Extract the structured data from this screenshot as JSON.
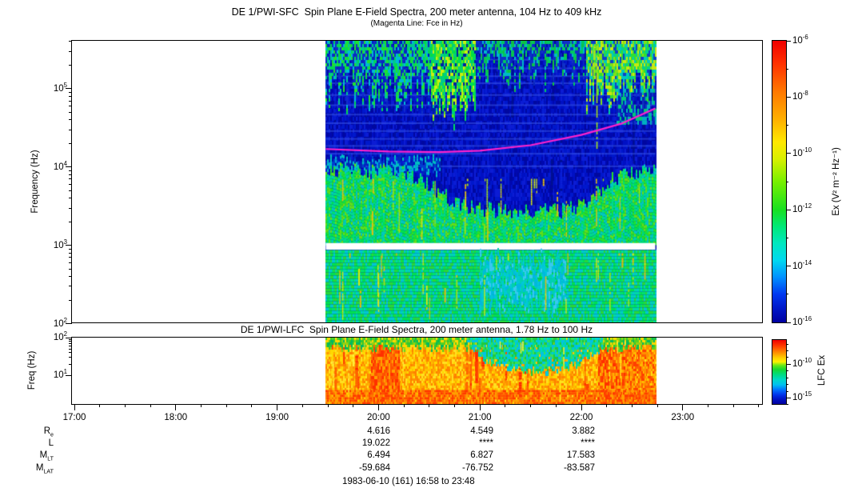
{
  "time_axis": {
    "labels": [
      "17:00",
      "18:00",
      "19:00",
      "20:00",
      "21:00",
      "22:00",
      "23:00"
    ],
    "hours": [
      17,
      18,
      19,
      20,
      21,
      22,
      23
    ],
    "minor_step_minutes": 15,
    "full_range": "16:58 to 23:48"
  },
  "annotations": {
    "rows": [
      {
        "label": {
          "base": "R",
          "sub": "e"
        },
        "values": [
          "4.616",
          "4.549",
          "3.882"
        ]
      },
      {
        "label": {
          "base": "L",
          "sub": ""
        },
        "values": [
          "19.022",
          "****",
          "****"
        ]
      },
      {
        "label": {
          "base": "M",
          "sub": "LT"
        },
        "values": [
          "6.494",
          "6.827",
          "17.583"
        ]
      },
      {
        "label": {
          "base": "M",
          "sub": "LAT"
        },
        "values": [
          "-59.684",
          "-76.752",
          "-83.587"
        ]
      }
    ],
    "value_column_hours": [
      20,
      21,
      22
    ],
    "footer": "1983-06-10 (161) 16:58 to 23:48"
  },
  "chart_data": [
    {
      "type": "heatmap",
      "id": "sfc",
      "title": "DE 1/PWI-SFC  Spin Plane E-Field Spectra, 200 meter antenna, 104 Hz to 409 kHz",
      "subtitle": "(Magenta Line: Fce in Hz)",
      "ylabel": "Frequency (Hz)",
      "y_scale": "log",
      "y_range_hz": [
        104,
        409000
      ],
      "y_tick_exps": [
        2,
        3,
        4,
        5
      ],
      "x_range_hours": [
        16.975,
        23.8
      ],
      "data_time_range_hours": [
        19.48,
        22.73
      ],
      "colorbar": {
        "label": "Ex (V² m⁻² Hz⁻¹)",
        "labeled_exps": [
          -6,
          -8,
          -10,
          -12,
          -14,
          -16
        ],
        "minor_exps": [
          -7,
          -9,
          -11,
          -13,
          -15
        ],
        "top_exp": -6,
        "bottom_exp": -16,
        "gradient": [
          [
            0,
            "#F00000"
          ],
          [
            8,
            "#FF3000"
          ],
          [
            18,
            "#FF7800"
          ],
          [
            28,
            "#FFB000"
          ],
          [
            36,
            "#FFE800"
          ],
          [
            42,
            "#D8F000"
          ],
          [
            50,
            "#78F000"
          ],
          [
            60,
            "#18E020"
          ],
          [
            66,
            "#00E878"
          ],
          [
            72,
            "#00E8C0"
          ],
          [
            78,
            "#00D8F0"
          ],
          [
            84,
            "#0090FF"
          ],
          [
            90,
            "#0038F0"
          ],
          [
            95,
            "#0018C8"
          ],
          [
            100,
            "#0000A0"
          ]
        ]
      },
      "fce_line_hz": [
        [
          19.48,
          17000
        ],
        [
          20.1,
          15800
        ],
        [
          20.6,
          15500
        ],
        [
          21.0,
          16200
        ],
        [
          21.5,
          19000
        ],
        [
          22.0,
          25700
        ],
        [
          22.4,
          36000
        ],
        [
          22.73,
          56000
        ]
      ],
      "fce_line_color": "#FF22CC",
      "features": [
        {
          "type": "band",
          "name": "background",
          "t": [
            19.48,
            22.73
          ],
          "top": 5.6117,
          "bottom": 2.017,
          "palette": [
            "#0008B0",
            "#0010C4",
            "#0018CC",
            "#0008A0",
            "#0C1CD4"
          ],
          "seg": 5
        },
        {
          "type": "streaks",
          "name": "dark-column-texture",
          "count": 50,
          "t": [
            19.5,
            22.7
          ],
          "logf": [
            3.1,
            5.55
          ],
          "len": [
            0.3,
            1.2
          ],
          "palette": [
            "#0006A0",
            "#0A20D8",
            "#001090"
          ],
          "w": [
            1,
            3
          ]
        },
        {
          "type": "hstripes",
          "name": "sfc-channel-stripes",
          "t": [
            19.48,
            22.73
          ],
          "logfs": [
            5.38,
            5.27,
            5.17,
            5.08,
            4.93,
            4.8,
            4.68,
            4.57,
            4.47,
            4.37,
            4.28,
            4.18,
            4.02
          ],
          "color": "#3A5AE8",
          "alpha": 0.55,
          "h": 2
        },
        {
          "type": "band",
          "name": "auroral-hiss-left",
          "t": [
            19.48,
            20.52
          ],
          "top": 5.6117,
          "bottom": 5.0,
          "bottom_jitter": 0.3,
          "palette": [
            "#00D855",
            "#00C890",
            "#20E030",
            "#1030C8",
            "#0828C0",
            "#00B8D8"
          ],
          "seg": 4,
          "density": 0.95
        },
        {
          "type": "band",
          "name": "patchy-mid-top",
          "t": [
            20.95,
            22.05
          ],
          "top": 5.6117,
          "bottom": 5.25,
          "bottom_jitter": 0.28,
          "palette": [
            "#00C860",
            "#1030C8",
            "#00B8C8",
            "#0828C0",
            "#10C040"
          ],
          "seg": 4,
          "density": 0.9
        },
        {
          "type": "band",
          "name": "akr-burst",
          "t": [
            20.52,
            20.95
          ],
          "top": 5.6117,
          "bottom": 4.74,
          "bottom_jitter": 0.25,
          "palette": [
            "#00E040",
            "#60E818",
            "#00C890",
            "#0020A0",
            "#C8F010",
            "#00D860"
          ],
          "seg": 4
        },
        {
          "type": "band",
          "name": "top-right-bright",
          "t": [
            22.05,
            22.73
          ],
          "top": 5.6117,
          "bottom": 4.95,
          "bottom_jitter": 0.3,
          "palette": [
            "#80E018",
            "#30E030",
            "#00D090",
            "#C8E810",
            "#1040C8",
            "#00C8C0"
          ],
          "seg": 4
        },
        {
          "type": "band",
          "name": "right-streamers",
          "t": [
            22.35,
            22.73
          ],
          "top": 5.0,
          "bottom": 4.55,
          "palette": [
            "#00C878",
            "#1030C8",
            "#0020B0",
            "#00B0C0"
          ],
          "seg": 5,
          "density": 0.7
        },
        {
          "type": "band",
          "name": "left-cyan-fringe",
          "t": [
            19.48,
            20.6
          ],
          "top": 4.12,
          "bottom": 3.95,
          "top_jitter": 0.06,
          "bottom_jitter": 0.05,
          "palette": [
            "#0040D0",
            "#00A8D8",
            "#0028B8",
            "#00C0C0"
          ],
          "seg": 4,
          "density": 0.85
        },
        {
          "type": "band",
          "name": "hiss-band",
          "t": [
            19.48,
            22.73
          ],
          "top_kp": [
            [
              19.48,
              3.97
            ],
            [
              20.3,
              3.92
            ],
            [
              20.55,
              3.72
            ],
            [
              20.8,
              3.5
            ],
            [
              21.2,
              3.44
            ],
            [
              21.8,
              3.44
            ],
            [
              22.05,
              3.52
            ],
            [
              22.3,
              3.85
            ],
            [
              22.55,
              3.94
            ],
            [
              22.73,
              3.96
            ]
          ],
          "top_jitter": 0.1,
          "bottom": 3.02,
          "palette": [
            "#00E050",
            "#00D890",
            "#28E028",
            "#00C8C0",
            "#00E070",
            "#60E018"
          ],
          "seg": 4
        },
        {
          "type": "streaks",
          "name": "hiss-yellow-streaks",
          "count": 26,
          "t": [
            19.55,
            22.6
          ],
          "logf": [
            3.05,
            3.85
          ],
          "len": [
            0.2,
            0.7
          ],
          "palette": [
            "#D8E810",
            "#A0E018",
            "#E8C010"
          ],
          "w": [
            1,
            2
          ]
        },
        {
          "type": "rect",
          "name": "data-gap",
          "t": [
            19.48,
            22.73
          ],
          "logf": [
            2.945,
            3.03
          ],
          "color": "#FFFFFF"
        },
        {
          "type": "band",
          "name": "low-band",
          "t": [
            19.48,
            22.73
          ],
          "top": 2.94,
          "bottom": 2.017,
          "palette": [
            "#00E070",
            "#00D8A8",
            "#28D838",
            "#00C8D0",
            "#00E050"
          ],
          "seg": 4
        },
        {
          "type": "band",
          "name": "low-cyan-patch",
          "t": [
            21.0,
            21.85
          ],
          "top": 2.82,
          "bottom": 2.25,
          "top_jitter": 0.15,
          "bottom_jitter": 0.15,
          "palette": [
            "#00B8E0",
            "#00C8D8",
            "#38C8F0",
            "#00D0B0"
          ],
          "seg": 5,
          "density": 0.8
        },
        {
          "type": "streaks",
          "name": "low-yellow-streaks",
          "count": 30,
          "t": [
            19.55,
            22.65
          ],
          "logf": [
            2.05,
            2.9
          ],
          "len": [
            0.15,
            0.6
          ],
          "palette": [
            "#E0E810",
            "#A8E018",
            "#F0B808"
          ],
          "w": [
            1,
            2
          ]
        },
        {
          "type": "streaks",
          "name": "narrowband-event",
          "count": 3,
          "t": [
            22.1,
            22.16
          ],
          "logf": [
            4.1,
            5.55
          ],
          "len": [
            0.9,
            1.45
          ],
          "palette": [
            "#30E030",
            "#A8E818"
          ],
          "w": [
            1,
            2
          ]
        },
        {
          "type": "fce_line",
          "name": "fce-line",
          "color": "#FF22CC",
          "width": 2.2
        }
      ]
    },
    {
      "type": "heatmap",
      "id": "lfc",
      "title": "DE 1/PWI-LFC  Spin Plane E-Field Spectra, 200 meter antenna, 1.78 Hz to 100 Hz",
      "ylabel": "Freq (Hz)",
      "y_scale": "log",
      "y_range_hz": [
        1.78,
        100
      ],
      "y_tick_exps": [
        1,
        2
      ],
      "data_time_range_hours": [
        19.48,
        22.73
      ],
      "colorbar": {
        "label": "LFC Ex",
        "labeled_exps": [
          -10,
          -15
        ],
        "minor_exps": [
          -7,
          -8,
          -9,
          -11,
          -12,
          -13,
          -14,
          -16
        ],
        "top_exp": -6.4,
        "bottom_exp": -15.9,
        "gradient": [
          [
            0,
            "#F00000"
          ],
          [
            10,
            "#FF4000"
          ],
          [
            20,
            "#FF9000"
          ],
          [
            28,
            "#FFD000"
          ],
          [
            34,
            "#FFF000"
          ],
          [
            40,
            "#60E818"
          ],
          [
            46,
            "#18D830"
          ],
          [
            54,
            "#00DC80"
          ],
          [
            62,
            "#00D8C8"
          ],
          [
            70,
            "#00C0F0"
          ],
          [
            78,
            "#0070FF"
          ],
          [
            86,
            "#0030E8"
          ],
          [
            93,
            "#0010C0"
          ],
          [
            100,
            "#0000A0"
          ]
        ]
      },
      "features": [
        {
          "type": "band",
          "name": "background",
          "t": [
            19.48,
            22.73
          ],
          "top": 2.0,
          "bottom": 0.25,
          "palette": [
            "#FFD800",
            "#FFC000",
            "#FFA800",
            "#FF9000",
            "#FFE020",
            "#FF8000"
          ],
          "seg": 3
        },
        {
          "type": "streaks",
          "name": "red-streaks",
          "count": 40,
          "t": [
            19.5,
            22.7
          ],
          "logf": [
            0.25,
            2.0
          ],
          "len": [
            0.4,
            1.6
          ],
          "palette": [
            "#FF4000",
            "#FF2800",
            "#FF6000"
          ],
          "w": [
            2,
            4
          ]
        },
        {
          "type": "band",
          "name": "red-band-1",
          "t": [
            19.93,
            20.2
          ],
          "top": 2.0,
          "bottom": 0.25,
          "palette": [
            "#FF3000",
            "#FF5000",
            "#FF7000",
            "#FFA000"
          ],
          "seg": 4
        },
        {
          "type": "band",
          "name": "red-band-2",
          "t": [
            22.17,
            22.45
          ],
          "top": 2.0,
          "bottom": 0.25,
          "palette": [
            "#FF3000",
            "#FF5800",
            "#FF8000",
            "#FFB000"
          ],
          "seg": 4
        },
        {
          "type": "band",
          "name": "right-end-hot",
          "t": [
            22.45,
            22.73
          ],
          "top": 2.0,
          "bottom": 0.25,
          "palette": [
            "#FF6000",
            "#FF9000",
            "#FFB800",
            "#FF4000"
          ],
          "seg": 3,
          "density": 0.85
        },
        {
          "type": "band",
          "name": "bottom-hot-row",
          "t": [
            19.48,
            22.73
          ],
          "top": 0.62,
          "bottom": 0.25,
          "palette": [
            "#FF5000",
            "#FF3800",
            "#FF7800",
            "#FFA000"
          ],
          "seg": 3,
          "density": 0.92
        },
        {
          "type": "band",
          "name": "top-green-row",
          "t": [
            19.48,
            22.73
          ],
          "top": 2.0,
          "bottom": 1.74,
          "bottom_jitter": 0.12,
          "palette": [
            "#30C830",
            "#58D020",
            "#00B860",
            "#98D010",
            "#FFD800"
          ],
          "seg": 3
        },
        {
          "type": "band",
          "name": "quiet-cyan-region",
          "t": [
            20.88,
            22.2
          ],
          "top": 2.0,
          "bottom_kp": [
            [
              20.88,
              1.85
            ],
            [
              21.05,
              1.4
            ],
            [
              21.3,
              1.2
            ],
            [
              21.6,
              1.12
            ],
            [
              21.9,
              1.22
            ],
            [
              22.05,
              1.45
            ],
            [
              22.2,
              1.8
            ]
          ],
          "bottom_jitter": 0.12,
          "palette": [
            "#00DC98",
            "#00D0D0",
            "#38E058",
            "#00C0E8",
            "#20C840"
          ],
          "seg": 3,
          "density": 0.95
        },
        {
          "type": "streaks",
          "name": "yellow-streaks",
          "count": 20,
          "t": [
            19.5,
            22.7
          ],
          "logf": [
            0.3,
            1.9
          ],
          "len": [
            0.3,
            1.0
          ],
          "palette": [
            "#FFE818",
            "#FFF040"
          ],
          "w": [
            1,
            2
          ]
        }
      ]
    }
  ]
}
